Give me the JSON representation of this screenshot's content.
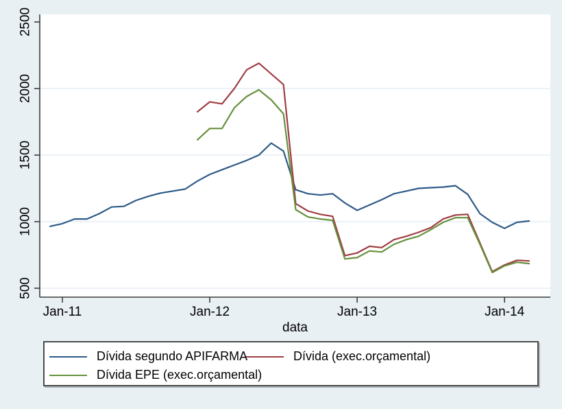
{
  "figure": {
    "background_color": "#e9f0f4",
    "plot_background_color": "#ffffff",
    "grid_color": "#dfeaf3",
    "axis_color": "#3c3c3c",
    "text_color": "#000000"
  },
  "chart_data": {
    "type": "line",
    "title": "",
    "xlabel": "data",
    "ylabel": "",
    "x_tick_labels": [
      "Jan-11",
      "Jan-12",
      "Jan-13",
      "Jan-14"
    ],
    "x_tick_month_indices": [
      1,
      13,
      25,
      37
    ],
    "x_month_span": [
      "Dec-10",
      "Mar-14"
    ],
    "y_ticks": [
      500,
      1000,
      1500,
      2000,
      2500
    ],
    "y_tick_labels": [
      "500",
      "1000",
      "1500",
      "2000",
      "2500"
    ],
    "grid_values": [
      500,
      1000,
      1500,
      2000
    ],
    "ylim_approx": [
      433,
      2557
    ],
    "legend_position": "bottom-box-two-columns",
    "series": [
      {
        "name": "Dívida segundo APIFARMA",
        "color": "#2d5a87",
        "start_month": "Dec-10",
        "start_month_index": 0,
        "values": [
          965,
          985,
          1020,
          1020,
          1060,
          1110,
          1115,
          1160,
          1190,
          1215,
          1230,
          1245,
          1305,
          1355,
          1390,
          1425,
          1460,
          1500,
          1590,
          1530,
          1240,
          1210,
          1200,
          1210,
          1140,
          1085,
          1125,
          1165,
          1210,
          1230,
          1250,
          1255,
          1260,
          1270,
          1205,
          1060,
          995,
          950,
          995,
          1005
        ]
      },
      {
        "name": "Dívida (exec.orçamental)",
        "color": "#a03d43",
        "start_month": "Dec-11",
        "start_month_index": 12,
        "values": [
          1825,
          1900,
          1885,
          2000,
          2140,
          2190,
          2110,
          2030,
          1135,
          1080,
          1055,
          1040,
          745,
          765,
          815,
          805,
          865,
          890,
          920,
          955,
          1020,
          1050,
          1055,
          840,
          625,
          675,
          710,
          705
        ]
      },
      {
        "name": "Dívida EPE (exec.orçamental)",
        "color": "#66903d",
        "start_month": "Dec-11",
        "start_month_index": 12,
        "values": [
          1615,
          1700,
          1700,
          1855,
          1940,
          1990,
          1915,
          1810,
          1090,
          1035,
          1020,
          1010,
          720,
          730,
          780,
          772,
          830,
          865,
          890,
          940,
          995,
          1030,
          1030,
          830,
          618,
          668,
          695,
          685
        ]
      }
    ]
  }
}
